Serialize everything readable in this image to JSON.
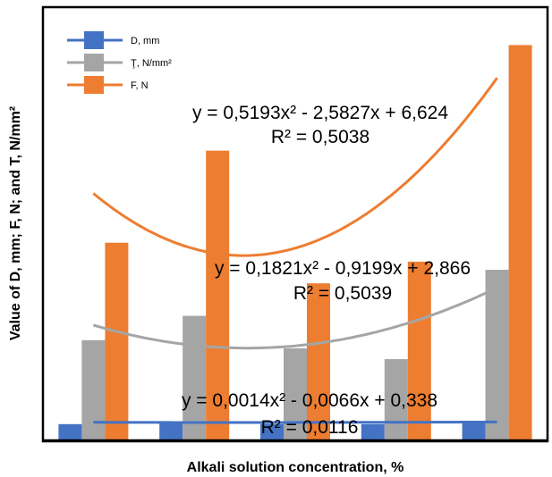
{
  "chart_data": {
    "type": "bar",
    "xlabel": "Alkali solution concentration, %",
    "ylabel": "Value of D, mm; F, N; and T, N/mm²",
    "ylim": [
      0,
      8
    ],
    "categories": [
      "",
      "",
      "",
      "",
      ""
    ],
    "legend_position": "top-left",
    "grid": false,
    "series": [
      {
        "name": "D, mm",
        "color": "#4472c4",
        "values": [
          0.3,
          0.34,
          0.3,
          0.3,
          0.32
        ]
      },
      {
        "name": "Ţ, N/mm²",
        "color": "#a5a5a5",
        "values": [
          1.85,
          2.3,
          1.7,
          1.5,
          3.15
        ]
      },
      {
        "name": "F, N",
        "color": "#ed7d31",
        "values": [
          3.65,
          5.35,
          2.9,
          3.3,
          7.3
        ]
      }
    ],
    "trendlines": [
      {
        "series": "F, N",
        "type": "polynomial",
        "a": 0.5193,
        "b": -2.5827,
        "c": 6.624,
        "equation": "y = 0,5193x² - 2,5827x + 6,624",
        "r2": "R² = 0,5038"
      },
      {
        "series": "Ţ, N/mm²",
        "type": "polynomial",
        "a": 0.1821,
        "b": -0.9199,
        "c": 2.866,
        "equation": "y = 0,1821x² - 0,9199x + 2,866",
        "r2": "R² = 0,5039"
      },
      {
        "series": "D, mm",
        "type": "polynomial",
        "a": 0.0014,
        "b": -0.0066,
        "c": 0.338,
        "equation": "y = 0,0014x² - 0,0066x + 0,338",
        "r2": "R² = 0,0116"
      }
    ]
  }
}
